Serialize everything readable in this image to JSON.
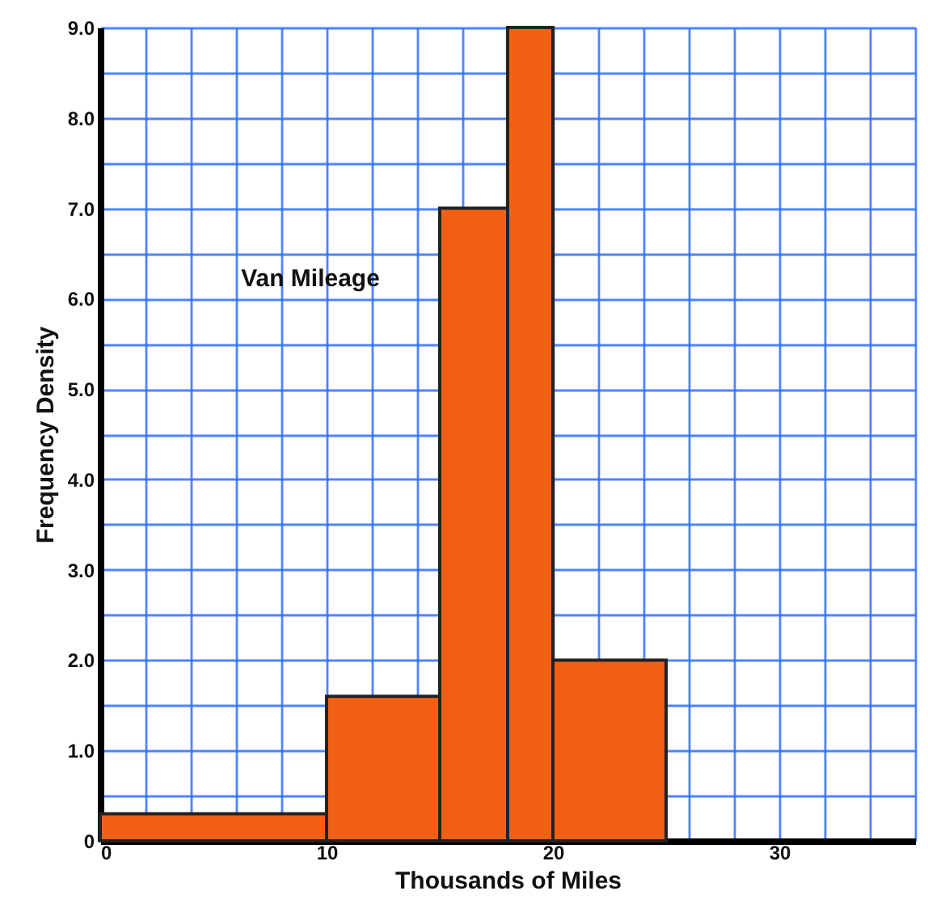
{
  "chart_data": {
    "type": "histogram",
    "title": "Van Mileage",
    "xlabel": "Thousands of Miles",
    "ylabel": "Frequency Density",
    "bins": [
      0,
      10,
      15,
      18,
      20,
      25
    ],
    "values": [
      0.3,
      1.6,
      7,
      9,
      2
    ],
    "color": "#f26113",
    "xlim": [
      0,
      36
    ],
    "xticks": [
      0,
      {
        "value": 2,
        "label": null
      },
      {
        "value": 4,
        "label": null
      },
      {
        "value": 6,
        "label": null
      },
      {
        "value": 8,
        "label": null
      },
      10,
      {
        "value": 12,
        "label": null
      },
      {
        "value": 14,
        "label": null
      },
      {
        "value": 16,
        "label": null
      },
      20,
      {
        "value": 22,
        "label": null
      },
      {
        "value": 24,
        "label": null
      },
      {
        "value": 26,
        "label": null
      },
      {
        "value": 28,
        "label": null
      },
      30,
      {
        "value": 32,
        "label": null
      },
      {
        "value": 34,
        "label": null
      },
      {
        "value": 36,
        "label": null
      }
    ],
    "ylim": [
      0,
      9
    ],
    "yticks": [
      0,
      {
        "value": 0.5,
        "label": null
      },
      {
        "value": 1,
        "label": "1.0"
      },
      {
        "value": 1.5,
        "label": null
      },
      {
        "value": 2,
        "label": "2.0"
      },
      {
        "value": 2.5,
        "label": null
      },
      {
        "value": 3,
        "label": "3.0"
      },
      {
        "value": 3.5,
        "label": null
      },
      {
        "value": 4,
        "label": "4.0"
      },
      {
        "value": 4.5,
        "label": null
      },
      {
        "value": 5,
        "label": "5.0"
      },
      {
        "value": 5.5,
        "label": null
      },
      {
        "value": 6,
        "label": "6.0"
      },
      {
        "value": 6.5,
        "label": null
      },
      {
        "value": 7,
        "label": "7.0"
      },
      {
        "value": 7.5,
        "label": null
      },
      {
        "value": 8,
        "label": "8.0"
      },
      {
        "value": 8.5,
        "label": null
      },
      {
        "value": 9,
        "label": "9.0"
      }
    ],
    "grid": true
  }
}
